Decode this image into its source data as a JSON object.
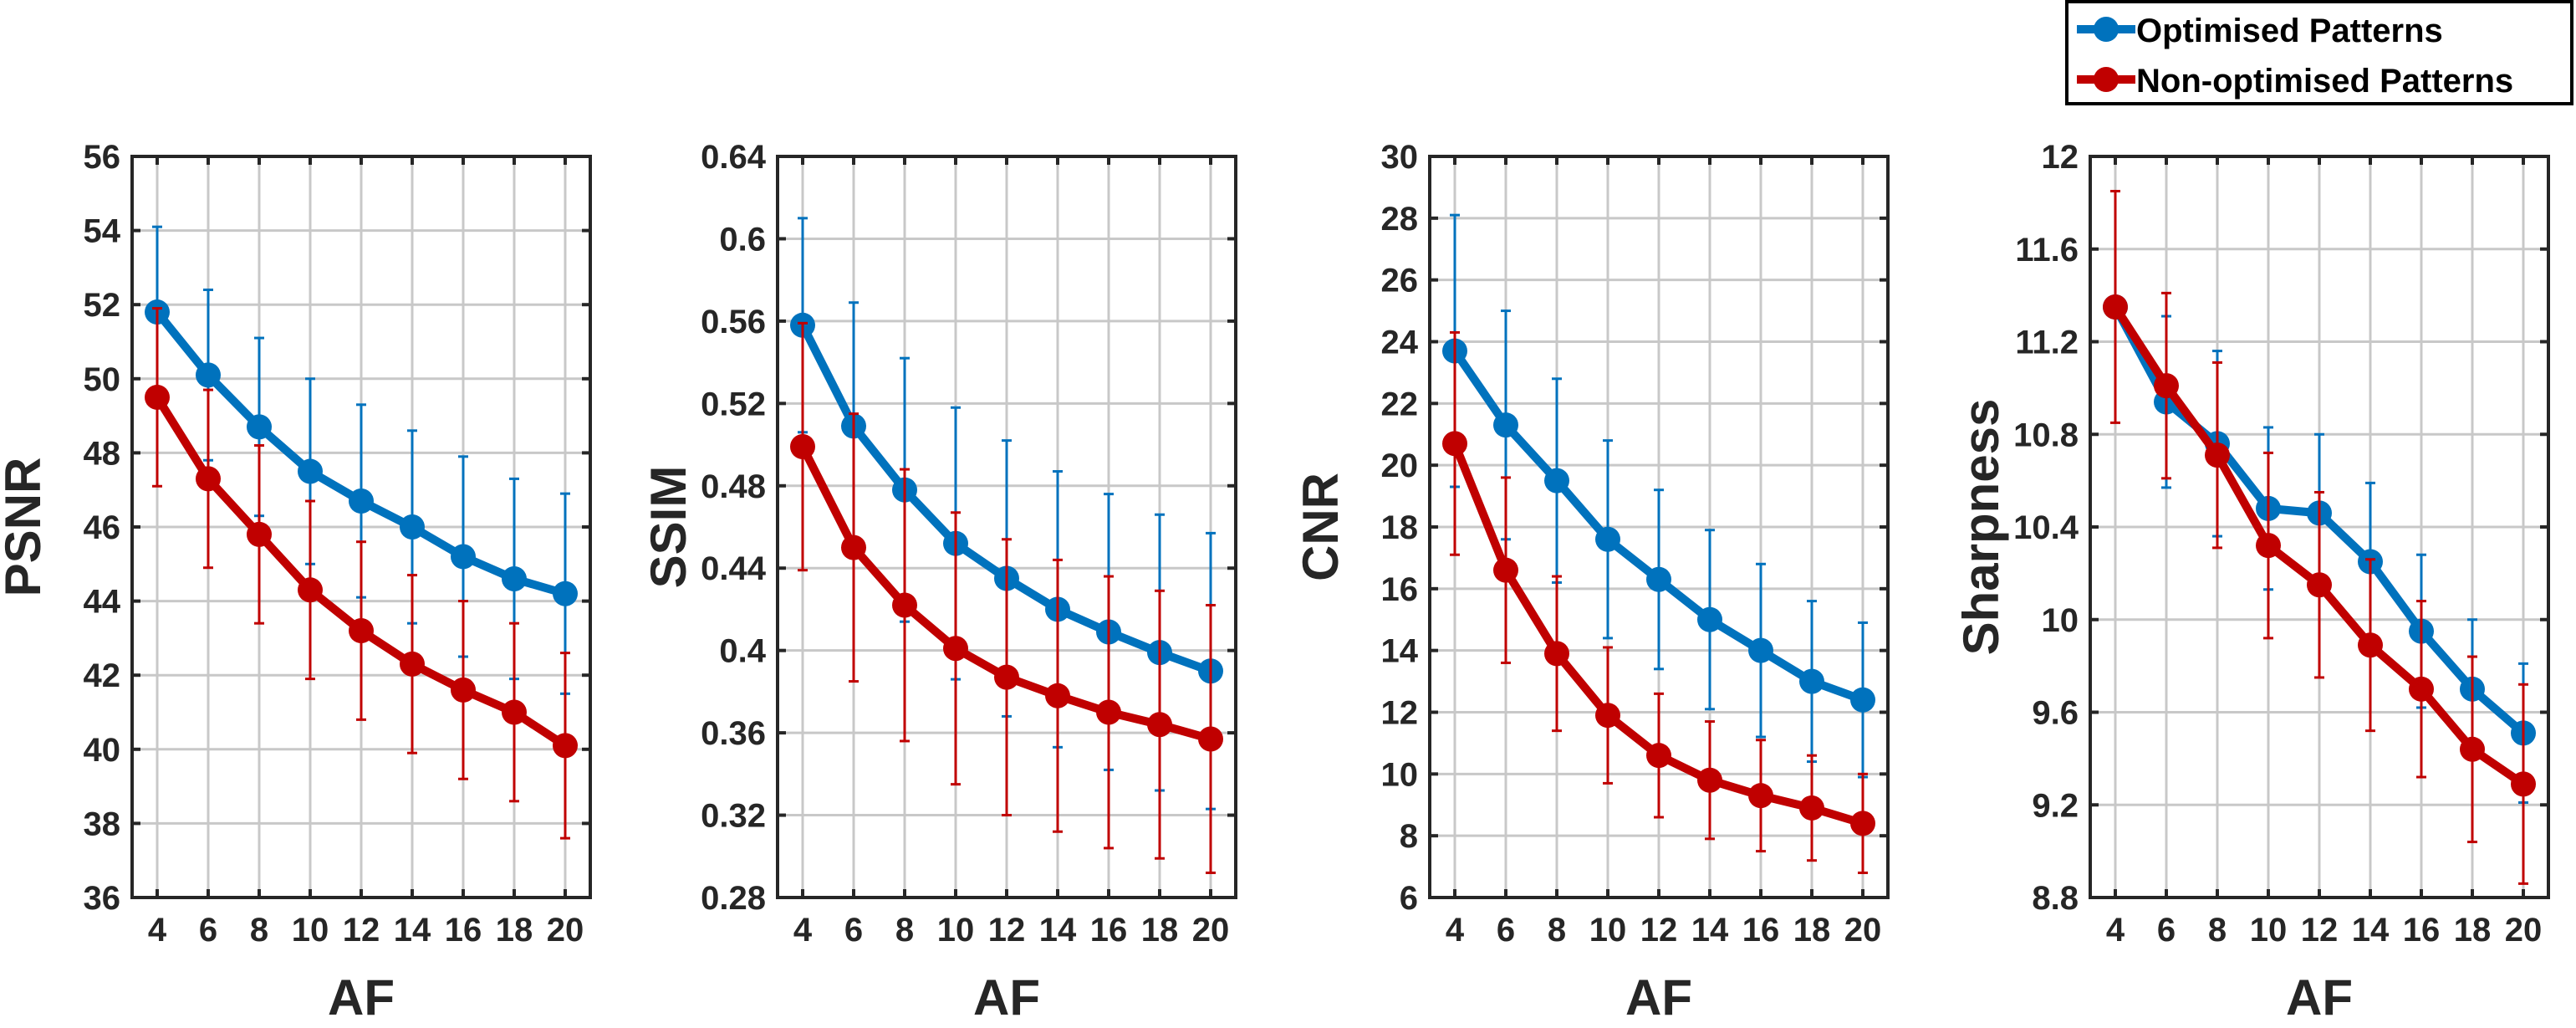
{
  "colors": {
    "optimised": "#0072BD",
    "non_optimised": "#C00000",
    "axis": "#262626",
    "grid": "#c8c8c8"
  },
  "legend": {
    "items": [
      "Optimised Patterns",
      "Non-optimised Patterns"
    ],
    "position": "top-right"
  },
  "chart_data": [
    {
      "type": "line",
      "xlabel": "AF",
      "ylabel": "PSNR",
      "x": [
        4,
        6,
        8,
        10,
        12,
        14,
        16,
        18,
        20
      ],
      "xticks": [
        "4",
        "6",
        "8",
        "10",
        "12",
        "14",
        "16",
        "18",
        "20"
      ],
      "ylim": [
        36,
        56
      ],
      "yticks": [
        "36",
        "38",
        "40",
        "42",
        "44",
        "46",
        "48",
        "50",
        "52",
        "54",
        "56"
      ],
      "grid": true,
      "series": [
        {
          "name": "Optimised Patterns",
          "values": [
            51.8,
            50.1,
            48.7,
            47.5,
            46.7,
            46.0,
            45.2,
            44.6,
            44.2
          ],
          "errors": [
            2.3,
            2.3,
            2.4,
            2.5,
            2.6,
            2.6,
            2.7,
            2.7,
            2.7
          ]
        },
        {
          "name": "Non-optimised Patterns",
          "values": [
            49.5,
            47.3,
            45.8,
            44.3,
            43.2,
            42.3,
            41.6,
            41.0,
            40.1
          ],
          "errors": [
            2.4,
            2.4,
            2.4,
            2.4,
            2.4,
            2.4,
            2.4,
            2.4,
            2.5
          ]
        }
      ]
    },
    {
      "type": "line",
      "xlabel": "AF",
      "ylabel": "SSIM",
      "x": [
        4,
        6,
        8,
        10,
        12,
        14,
        16,
        18,
        20
      ],
      "xticks": [
        "4",
        "6",
        "8",
        "10",
        "12",
        "14",
        "16",
        "18",
        "20"
      ],
      "ylim": [
        0.28,
        0.64
      ],
      "yticks": [
        "0.28",
        "0.32",
        "0.36",
        "0.4",
        "0.44",
        "0.48",
        "0.52",
        "0.56",
        "0.6",
        "0.64"
      ],
      "grid": true,
      "series": [
        {
          "name": "Optimised Patterns",
          "values": [
            0.558,
            0.509,
            0.478,
            0.452,
            0.435,
            0.42,
            0.409,
            0.399,
            0.39
          ],
          "errors": [
            0.052,
            0.06,
            0.064,
            0.066,
            0.067,
            0.067,
            0.067,
            0.067,
            0.067
          ]
        },
        {
          "name": "Non-optimised Patterns",
          "values": [
            0.499,
            0.45,
            0.422,
            0.401,
            0.387,
            0.378,
            0.37,
            0.364,
            0.357
          ],
          "errors": [
            0.06,
            0.065,
            0.066,
            0.066,
            0.067,
            0.066,
            0.066,
            0.065,
            0.065
          ]
        }
      ]
    },
    {
      "type": "line",
      "xlabel": "AF",
      "ylabel": "CNR",
      "x": [
        4,
        6,
        8,
        10,
        12,
        14,
        16,
        18,
        20
      ],
      "xticks": [
        "4",
        "6",
        "8",
        "10",
        "12",
        "14",
        "16",
        "18",
        "20"
      ],
      "ylim": [
        6,
        30
      ],
      "yticks": [
        "6",
        "8",
        "10",
        "12",
        "14",
        "16",
        "18",
        "20",
        "22",
        "24",
        "26",
        "28",
        "30"
      ],
      "grid": true,
      "series": [
        {
          "name": "Optimised Patterns",
          "values": [
            23.7,
            21.3,
            19.5,
            17.6,
            16.3,
            15.0,
            14.0,
            13.0,
            12.4
          ],
          "errors": [
            4.4,
            3.7,
            3.3,
            3.2,
            2.9,
            2.9,
            2.8,
            2.6,
            2.5
          ]
        },
        {
          "name": "Non-optimised Patterns",
          "values": [
            20.7,
            16.6,
            13.9,
            11.9,
            10.6,
            9.8,
            9.3,
            8.9,
            8.4
          ],
          "errors": [
            3.6,
            3.0,
            2.5,
            2.2,
            2.0,
            1.9,
            1.8,
            1.7,
            1.6
          ]
        }
      ]
    },
    {
      "type": "line",
      "xlabel": "AF",
      "ylabel": "Sharpness",
      "x": [
        4,
        6,
        8,
        10,
        12,
        14,
        16,
        18,
        20
      ],
      "xticks": [
        "4",
        "6",
        "8",
        "10",
        "12",
        "14",
        "16",
        "18",
        "20"
      ],
      "ylim": [
        8.8,
        12
      ],
      "yticks": [
        "8.8",
        "9.2",
        "9.6",
        "10",
        "10.4",
        "10.8",
        "11.2",
        "11.6",
        "12"
      ],
      "grid": true,
      "series": [
        {
          "name": "Optimised Patterns",
          "values": [
            11.35,
            10.94,
            10.76,
            10.48,
            10.46,
            10.25,
            9.95,
            9.7,
            9.51
          ],
          "errors": [
            0.04,
            0.37,
            0.4,
            0.35,
            0.34,
            0.34,
            0.33,
            0.3,
            0.3
          ]
        },
        {
          "name": "Non-optimised Patterns",
          "values": [
            11.35,
            11.01,
            10.71,
            10.32,
            10.15,
            9.89,
            9.7,
            9.44,
            9.29
          ],
          "errors": [
            0.5,
            0.4,
            0.4,
            0.4,
            0.4,
            0.37,
            0.38,
            0.4,
            0.43
          ]
        }
      ]
    }
  ]
}
